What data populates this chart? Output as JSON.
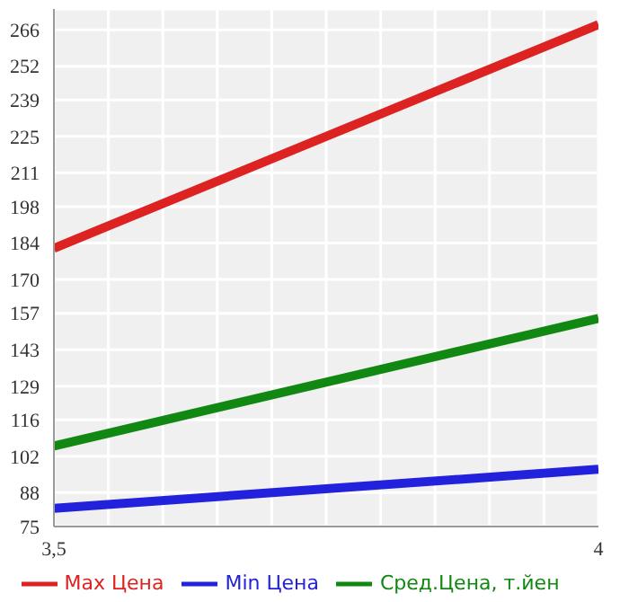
{
  "chart_data": {
    "type": "line",
    "x": [
      3.5,
      4
    ],
    "xlim": [
      3.5,
      4
    ],
    "xticks": [
      {
        "value": 3.5,
        "label": "3,5"
      },
      {
        "value": 3.55,
        "label": null
      },
      {
        "value": 3.6,
        "label": null
      },
      {
        "value": 3.65,
        "label": null
      },
      {
        "value": 3.7,
        "label": null
      },
      {
        "value": 3.75,
        "label": null
      },
      {
        "value": 3.8,
        "label": null
      },
      {
        "value": 3.85,
        "label": null
      },
      {
        "value": 3.9,
        "label": null
      },
      {
        "value": 3.95,
        "label": null
      },
      4
    ],
    "ylim": [
      75,
      274
    ],
    "yticks": [
      75,
      88,
      102,
      116,
      129,
      143,
      157,
      170,
      184,
      198,
      211,
      225,
      239,
      252,
      266
    ],
    "series": [
      {
        "name": "Max Цена",
        "color": "#dd2222",
        "values": [
          182,
          268
        ]
      },
      {
        "name": "Min Цена",
        "color": "#2222dd",
        "values": [
          82,
          97
        ]
      },
      {
        "name": "Сред.Цена, т.йен",
        "color": "#118811",
        "values": [
          106,
          155
        ]
      }
    ],
    "grid": true,
    "legend": "bottom",
    "marker": "none",
    "line_style": "solid"
  }
}
